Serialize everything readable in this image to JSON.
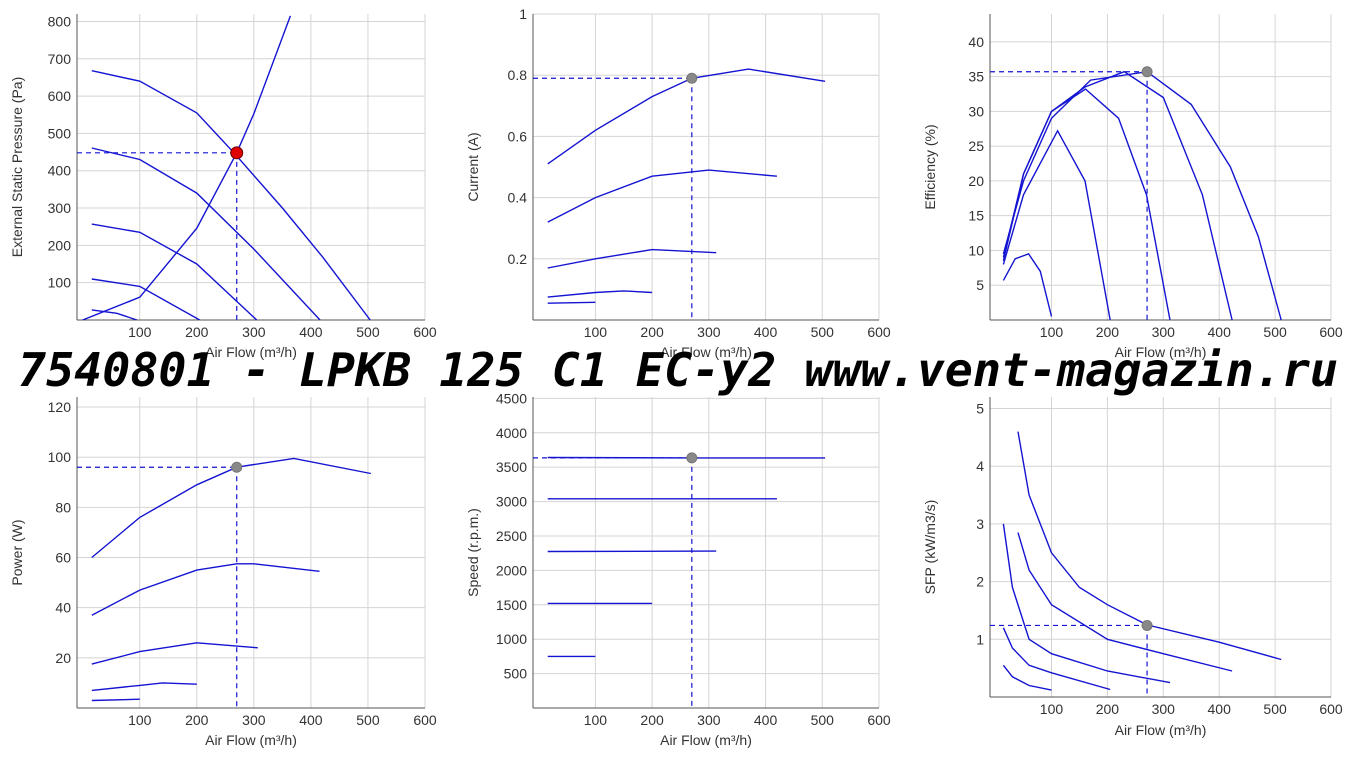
{
  "watermark": "7540801 -  LPKB 125 C1 EC-y2 www.vent-magazin.ru",
  "chart_data": [
    {
      "type": "line",
      "x_label": "Air Flow (m³/h)",
      "y_label": "External Static Pressure (Pa)",
      "color": "#1414d2",
      "grid": true,
      "xlim": [
        -10,
        600
      ],
      "xticks": [
        100,
        200,
        300,
        400,
        500,
        600
      ],
      "ylim": [
        0,
        820
      ],
      "yticks": [
        100,
        200,
        300,
        400,
        500,
        600,
        700,
        800
      ],
      "series": [
        {
          "x": [
            16,
            100,
            200,
            265,
            350,
            420,
            504
          ],
          "values": [
            668,
            640,
            555,
            448,
            300,
            170,
            0
          ]
        },
        {
          "x": [
            16,
            100,
            200,
            300,
            416
          ],
          "values": [
            461,
            430,
            340,
            190,
            0
          ]
        },
        {
          "x": [
            16,
            100,
            200,
            305
          ],
          "values": [
            257,
            235,
            150,
            0
          ]
        },
        {
          "x": [
            16,
            100,
            205
          ],
          "values": [
            110,
            90,
            0
          ]
        },
        {
          "x": [
            16,
            60,
            95
          ],
          "values": [
            27,
            18,
            0
          ]
        },
        {
          "x": [
            0,
            100,
            200,
            270,
            300,
            364
          ],
          "values": [
            0,
            61,
            246,
            448,
            553,
            815
          ]
        }
      ],
      "operating_point": {
        "x": 270,
        "y": 448,
        "color": "#e00000"
      }
    },
    {
      "type": "line",
      "x_label": "Air Flow (m³/h)",
      "y_label": "Current (A)",
      "color": "#1414d2",
      "grid": true,
      "xlim": [
        -10,
        600
      ],
      "xticks": [
        100,
        200,
        300,
        400,
        500,
        600
      ],
      "ylim": [
        0,
        1
      ],
      "yticks": [
        0.2,
        0.4,
        0.6,
        0.8,
        1
      ],
      "series": [
        {
          "x": [
            16,
            100,
            200,
            270,
            370,
            505
          ],
          "values": [
            0.51,
            0.62,
            0.73,
            0.79,
            0.82,
            0.78
          ]
        },
        {
          "x": [
            16,
            100,
            200,
            300,
            420
          ],
          "values": [
            0.32,
            0.4,
            0.47,
            0.49,
            0.47
          ]
        },
        {
          "x": [
            16,
            100,
            200,
            313
          ],
          "values": [
            0.17,
            0.2,
            0.23,
            0.22
          ]
        },
        {
          "x": [
            16,
            100,
            150,
            200
          ],
          "values": [
            0.075,
            0.09,
            0.095,
            0.09
          ]
        },
        {
          "x": [
            16,
            100
          ],
          "values": [
            0.055,
            0.058
          ]
        }
      ],
      "operating_point": {
        "x": 270,
        "y": 0.79,
        "color": "#888888"
      }
    },
    {
      "type": "line",
      "x_label": "Air Flow (m³/h)",
      "y_label": "Efficiency (%)",
      "color": "#1414d2",
      "grid": true,
      "xlim": [
        -10,
        600
      ],
      "xticks": [
        100,
        200,
        300,
        400,
        500,
        600
      ],
      "ylim": [
        0,
        44
      ],
      "yticks": [
        5,
        10,
        15,
        20,
        25,
        30,
        35,
        40
      ],
      "series": [
        {
          "x": [
            14,
            50,
            100,
            170,
            271,
            350,
            420,
            470,
            511
          ],
          "values": [
            9.5,
            20,
            29,
            34.5,
            35.7,
            31,
            22,
            12,
            0
          ]
        },
        {
          "x": [
            14,
            50,
            100,
            160,
            230,
            300,
            370,
            423
          ],
          "values": [
            9,
            21,
            30,
            33.5,
            35.7,
            32,
            18,
            0
          ]
        },
        {
          "x": [
            14,
            50,
            100,
            161,
            220,
            270,
            312
          ],
          "values": [
            8.5,
            21,
            30,
            33.2,
            29,
            18,
            0
          ]
        },
        {
          "x": [
            14,
            50,
            111,
            160,
            205
          ],
          "values": [
            8,
            18,
            27.2,
            20,
            0
          ]
        },
        {
          "x": [
            14,
            35,
            59,
            80,
            100
          ],
          "values": [
            5.7,
            8.8,
            9.5,
            7,
            0.5
          ]
        }
      ],
      "operating_point": {
        "x": 271,
        "y": 35.7,
        "color": "#888888"
      }
    },
    {
      "type": "line",
      "x_label": "Air Flow (m³/h)",
      "y_label": "Power (W)",
      "color": "#1414d2",
      "grid": true,
      "xlim": [
        -10,
        600
      ],
      "xticks": [
        100,
        200,
        300,
        400,
        500,
        600
      ],
      "ylim": [
        0,
        124
      ],
      "yticks": [
        20,
        40,
        60,
        80,
        100,
        120
      ],
      "series": [
        {
          "x": [
            16,
            100,
            200,
            270,
            370,
            505
          ],
          "values": [
            60,
            76,
            89,
            96,
            99.5,
            93.5
          ]
        },
        {
          "x": [
            16,
            100,
            200,
            270,
            300,
            415
          ],
          "values": [
            37,
            47,
            55,
            57.5,
            57.5,
            54.5
          ]
        },
        {
          "x": [
            16,
            100,
            200,
            307
          ],
          "values": [
            17.5,
            22.5,
            26,
            24
          ]
        },
        {
          "x": [
            16,
            100,
            140,
            200
          ],
          "values": [
            7,
            9,
            10,
            9.5
          ]
        },
        {
          "x": [
            16,
            100
          ],
          "values": [
            3,
            3.5
          ]
        }
      ],
      "operating_point": {
        "x": 270,
        "y": 96,
        "color": "#888888"
      }
    },
    {
      "type": "line",
      "x_label": "Air Flow (m³/h)",
      "y_label": "Speed (r.p.m.)",
      "color": "#1414d2",
      "grid": true,
      "xlim": [
        -10,
        600
      ],
      "xticks": [
        100,
        200,
        300,
        400,
        500,
        600
      ],
      "ylim": [
        0,
        4520
      ],
      "yticks": [
        500,
        1000,
        1500,
        2000,
        2500,
        3000,
        3500,
        4000,
        4500
      ],
      "series": [
        {
          "x": [
            16,
            270,
            505
          ],
          "values": [
            3640,
            3635,
            3635
          ]
        },
        {
          "x": [
            16,
            420
          ],
          "values": [
            3040,
            3040
          ]
        },
        {
          "x": [
            16,
            313
          ],
          "values": [
            2275,
            2280
          ]
        },
        {
          "x": [
            16,
            200
          ],
          "values": [
            1520,
            1520
          ]
        },
        {
          "x": [
            16,
            100
          ],
          "values": [
            750,
            750
          ]
        }
      ],
      "operating_point": {
        "x": 270,
        "y": 3635,
        "color": "#888888"
      }
    },
    {
      "type": "line",
      "x_label": "Air Flow (m³/h)",
      "y_label": "SFP (kW/m3/s)",
      "color": "#1414d2",
      "grid": true,
      "xlim": [
        -10,
        600
      ],
      "xticks": [
        100,
        200,
        300,
        400,
        500,
        600
      ],
      "ylim": [
        0,
        5.2
      ],
      "yticks": [
        1,
        2,
        3,
        4,
        5
      ],
      "series": [
        {
          "x": [
            40,
            60,
            100,
            150,
            200,
            271,
            400,
            511
          ],
          "values": [
            4.6,
            3.5,
            2.5,
            1.9,
            1.6,
            1.25,
            0.95,
            0.65
          ]
        },
        {
          "x": [
            40,
            60,
            100,
            200,
            300,
            423
          ],
          "values": [
            2.85,
            2.2,
            1.6,
            1.0,
            0.75,
            0.45
          ]
        },
        {
          "x": [
            14,
            30,
            60,
            100,
            200,
            312
          ],
          "values": [
            3.0,
            1.9,
            1.0,
            0.75,
            0.45,
            0.25
          ]
        },
        {
          "x": [
            14,
            30,
            60,
            100,
            205
          ],
          "values": [
            1.2,
            0.85,
            0.55,
            0.42,
            0.13
          ]
        },
        {
          "x": [
            14,
            30,
            60,
            100
          ],
          "values": [
            0.55,
            0.35,
            0.2,
            0.12
          ]
        }
      ],
      "operating_point": {
        "x": 271,
        "y": 1.24,
        "color": "#888888"
      }
    }
  ]
}
